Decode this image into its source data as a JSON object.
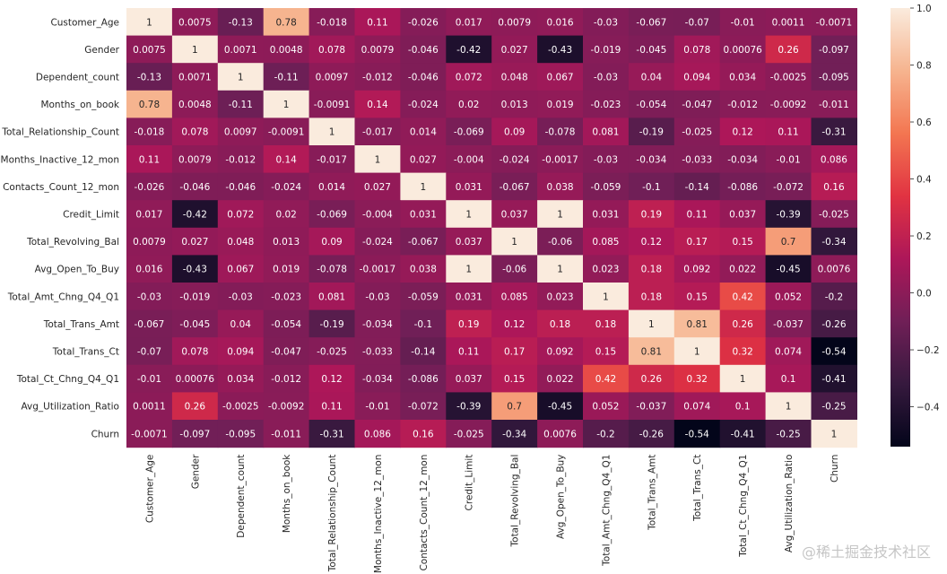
{
  "chart_data": {
    "type": "heatmap",
    "title": "",
    "labels": [
      "Customer_Age",
      "Gender",
      "Dependent_count",
      "Months_on_book",
      "Total_Relationship_Count",
      "Months_Inactive_12_mon",
      "Contacts_Count_12_mon",
      "Credit_Limit",
      "Total_Revolving_Bal",
      "Avg_Open_To_Buy",
      "Total_Amt_Chng_Q4_Q1",
      "Total_Trans_Amt",
      "Total_Trans_Ct",
      "Total_Ct_Chng_Q4_Q1",
      "Avg_Utilization_Ratio",
      "Churn"
    ],
    "annotations": [
      [
        "1",
        "0.0075",
        "-0.13",
        "0.78",
        "-0.018",
        "0.11",
        "-0.026",
        "0.017",
        "0.0079",
        "0.016",
        "-0.03",
        "-0.067",
        "-0.07",
        "-0.01",
        "0.0011",
        "-0.0071"
      ],
      [
        "0.0075",
        "1",
        "0.0071",
        "0.0048",
        "0.078",
        "0.0079",
        "-0.046",
        "-0.42",
        "0.027",
        "-0.43",
        "-0.019",
        "-0.045",
        "0.078",
        "0.00076",
        "0.26",
        "-0.097"
      ],
      [
        "-0.13",
        "0.0071",
        "1",
        "-0.11",
        "0.0097",
        "-0.012",
        "-0.046",
        "0.072",
        "0.048",
        "0.067",
        "-0.03",
        "0.04",
        "0.094",
        "0.034",
        "-0.0025",
        "-0.095"
      ],
      [
        "0.78",
        "0.0048",
        "-0.11",
        "1",
        "-0.0091",
        "0.14",
        "-0.024",
        "0.02",
        "0.013",
        "0.019",
        "-0.023",
        "-0.054",
        "-0.047",
        "-0.012",
        "-0.0092",
        "-0.011"
      ],
      [
        "-0.018",
        "0.078",
        "0.0097",
        "-0.0091",
        "1",
        "-0.017",
        "0.014",
        "-0.069",
        "0.09",
        "-0.078",
        "0.081",
        "-0.19",
        "-0.025",
        "0.12",
        "0.11",
        "-0.31"
      ],
      [
        "0.11",
        "0.0079",
        "-0.012",
        "0.14",
        "-0.017",
        "1",
        "0.027",
        "-0.004",
        "-0.024",
        "-0.0017",
        "-0.03",
        "-0.034",
        "-0.033",
        "-0.034",
        "-0.01",
        "0.086"
      ],
      [
        "-0.026",
        "-0.046",
        "-0.046",
        "-0.024",
        "0.014",
        "0.027",
        "1",
        "0.031",
        "-0.067",
        "0.038",
        "-0.059",
        "-0.1",
        "-0.14",
        "-0.086",
        "-0.072",
        "0.16"
      ],
      [
        "0.017",
        "-0.42",
        "0.072",
        "0.02",
        "-0.069",
        "-0.004",
        "0.031",
        "1",
        "0.037",
        "1",
        "0.031",
        "0.19",
        "0.11",
        "0.037",
        "-0.39",
        "-0.025"
      ],
      [
        "0.0079",
        "0.027",
        "0.048",
        "0.013",
        "0.09",
        "-0.024",
        "-0.067",
        "0.037",
        "1",
        "-0.06",
        "0.085",
        "0.12",
        "0.17",
        "0.15",
        "0.7",
        "-0.34"
      ],
      [
        "0.016",
        "-0.43",
        "0.067",
        "0.019",
        "-0.078",
        "-0.0017",
        "0.038",
        "1",
        "-0.06",
        "1",
        "0.023",
        "0.18",
        "0.092",
        "0.022",
        "-0.45",
        "0.0076"
      ],
      [
        "-0.03",
        "-0.019",
        "-0.03",
        "-0.023",
        "0.081",
        "-0.03",
        "-0.059",
        "0.031",
        "0.085",
        "0.023",
        "1",
        "0.18",
        "0.15",
        "0.42",
        "0.052",
        "-0.2"
      ],
      [
        "-0.067",
        "-0.045",
        "0.04",
        "-0.054",
        "-0.19",
        "-0.034",
        "-0.1",
        "0.19",
        "0.12",
        "0.18",
        "0.18",
        "1",
        "0.81",
        "0.26",
        "-0.037",
        "-0.26"
      ],
      [
        "-0.07",
        "0.078",
        "0.094",
        "-0.047",
        "-0.025",
        "-0.033",
        "-0.14",
        "0.11",
        "0.17",
        "0.092",
        "0.15",
        "0.81",
        "1",
        "0.32",
        "0.074",
        "-0.54"
      ],
      [
        "-0.01",
        "0.00076",
        "0.034",
        "-0.012",
        "0.12",
        "-0.034",
        "-0.086",
        "0.037",
        "0.15",
        "0.022",
        "0.42",
        "0.26",
        "0.32",
        "1",
        "0.1",
        "-0.41"
      ],
      [
        "0.0011",
        "0.26",
        "-0.0025",
        "-0.0092",
        "0.11",
        "-0.01",
        "-0.072",
        "-0.39",
        "0.7",
        "-0.45",
        "0.052",
        "-0.037",
        "0.074",
        "0.1",
        "1",
        "-0.25"
      ],
      [
        "-0.0071",
        "-0.097",
        "-0.095",
        "-0.011",
        "-0.31",
        "0.086",
        "0.16",
        "-0.025",
        "-0.34",
        "0.0076",
        "-0.2",
        "-0.26",
        "-0.54",
        "-0.41",
        "-0.25",
        "1"
      ]
    ],
    "colorbar": {
      "vmin": -0.54,
      "vmax": 1.0,
      "ticks": [
        "1.0",
        "0.8",
        "0.6",
        "0.4",
        "0.2",
        "0.0",
        "−0.2",
        "−0.4"
      ],
      "tick_values": [
        1.0,
        0.8,
        0.6,
        0.4,
        0.2,
        0.0,
        -0.2,
        -0.4
      ]
    },
    "colormap_stops": [
      "#03051a",
      "#36193e",
      "#701f57",
      "#ad1759",
      "#e13342",
      "#f37651",
      "#f6b48f",
      "#faebdd"
    ]
  },
  "watermark": "@稀土掘金技术社区"
}
